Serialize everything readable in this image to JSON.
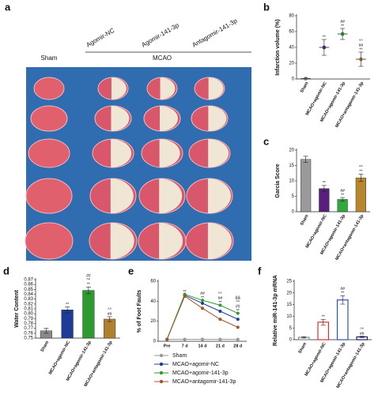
{
  "photo": {
    "panel": "a",
    "group_labels": [
      "Sham",
      "MCAO"
    ],
    "column_labels": [
      "Agomir-NC",
      "Agomir-141-3p",
      "Antagomir-141-3p"
    ]
  },
  "chart_data": [
    {
      "type": "dot",
      "panel": "b",
      "y_label": "Infarction volume (%)",
      "categories": [
        "Sham",
        "MCAO+agomir-NC",
        "MCAO+agomir-141-3p",
        "MCAO+antagomir-141-3p"
      ],
      "values": [
        0.5,
        40,
        57,
        25
      ],
      "errors": [
        0.5,
        10,
        7,
        9
      ],
      "colors": [
        "#888888",
        "#5b2a86",
        "#2e9a3a",
        "#a0763a"
      ],
      "annotations": [
        null,
        [
          "**"
        ],
        [
          "##",
          "**"
        ],
        [
          "^^",
          "##",
          "**"
        ]
      ],
      "ylim": [
        0,
        80
      ],
      "yticks": [
        0,
        20,
        40,
        60,
        80
      ]
    },
    {
      "type": "bar",
      "panel": "c",
      "y_label": "Garcia Score",
      "categories": [
        "Sham",
        "MCAO+agomir-NC",
        "MCAO+agomir-141-3p",
        "MCAO+antagomir-141-3p"
      ],
      "values": [
        17,
        7.5,
        4,
        11
      ],
      "errors": [
        1,
        1,
        0.6,
        1.2
      ],
      "colors": [
        "#9a9a9a",
        "#5a1f7d",
        "#2fa83c",
        "#b8862e"
      ],
      "annotations": [
        null,
        [
          "**"
        ],
        [
          "##",
          "**"
        ],
        [
          "^^",
          "**"
        ]
      ],
      "ylim": [
        0,
        20
      ],
      "yticks": [
        0,
        5,
        10,
        15,
        20
      ]
    },
    {
      "type": "bar",
      "panel": "d",
      "y_label": "Water Content",
      "categories": [
        "Sham",
        "MCAO+agomir-NC",
        "MCAO+agomir-141-3p",
        "MCAO+antagomir-141-3p"
      ],
      "values": [
        0.765,
        0.808,
        0.848,
        0.789
      ],
      "errors": [
        0.005,
        0.006,
        0.007,
        0.005
      ],
      "colors": [
        "#8a8a8a",
        "#1e3c96",
        "#2f9a2f",
        "#b08030"
      ],
      "annotations": [
        null,
        [
          "**"
        ],
        [
          "##",
          "^^",
          "**"
        ],
        [
          "^^",
          "##"
        ]
      ],
      "ylim": [
        0.75,
        0.87
      ],
      "yticks": [
        0.75,
        0.76,
        0.77,
        0.78,
        0.79,
        {
          "value": 0.8,
          "label": "0.80"
        },
        0.81,
        0.82,
        0.83,
        0.84,
        0.85,
        0.86,
        0.87
      ]
    },
    {
      "type": "line",
      "panel": "e",
      "y_label": "% of Foot Faults",
      "categories": [
        "Pre",
        "7 d",
        "14 d",
        "21 d",
        "28 d"
      ],
      "series": [
        {
          "name": "Sham",
          "color": "#999999",
          "values": [
            2,
            2,
            2,
            2,
            2
          ]
        },
        {
          "name": "MCAO+agomir-NC",
          "color": "#1e3c96",
          "values": [
            2,
            46,
            38,
            30,
            22
          ]
        },
        {
          "name": "MCAO+agomir-141-3p",
          "color": "#2f9a2f",
          "values": [
            2,
            47,
            41,
            36,
            28
          ]
        },
        {
          "name": "MCAO+antagomir-141-3p",
          "color": "#a0552a",
          "values": [
            2,
            45,
            33,
            22,
            14
          ]
        }
      ],
      "annotations": [
        null,
        [
          "**"
        ],
        [
          "##",
          "**"
        ],
        [
          "^^",
          "##",
          "**"
        ],
        [
          "&&",
          "^^",
          "##",
          "**"
        ]
      ],
      "ylim": [
        0,
        60
      ],
      "yticks": [
        0,
        20,
        40,
        60
      ]
    },
    {
      "type": "bar",
      "panel": "f",
      "y_label": "Relative miR-141-3p mRNA",
      "bar_style": "outline",
      "categories": [
        "Sham",
        "MCAO+agomir-NC",
        "MCAO+agomir-141-3p",
        "MCAO+antagomir-141-3p"
      ],
      "values": [
        1,
        7.5,
        17,
        1.2
      ],
      "errors": [
        0.3,
        1.2,
        1.8,
        0.3
      ],
      "colors": [
        "#888888",
        "#e03030",
        "#3050c0",
        "#202060"
      ],
      "annotations": [
        null,
        [
          "**"
        ],
        [
          "##",
          "**"
        ],
        [
          "^^",
          "##"
        ]
      ],
      "ylim": [
        0,
        25
      ],
      "yticks": [
        0,
        5,
        10,
        15,
        20,
        25
      ]
    }
  ]
}
